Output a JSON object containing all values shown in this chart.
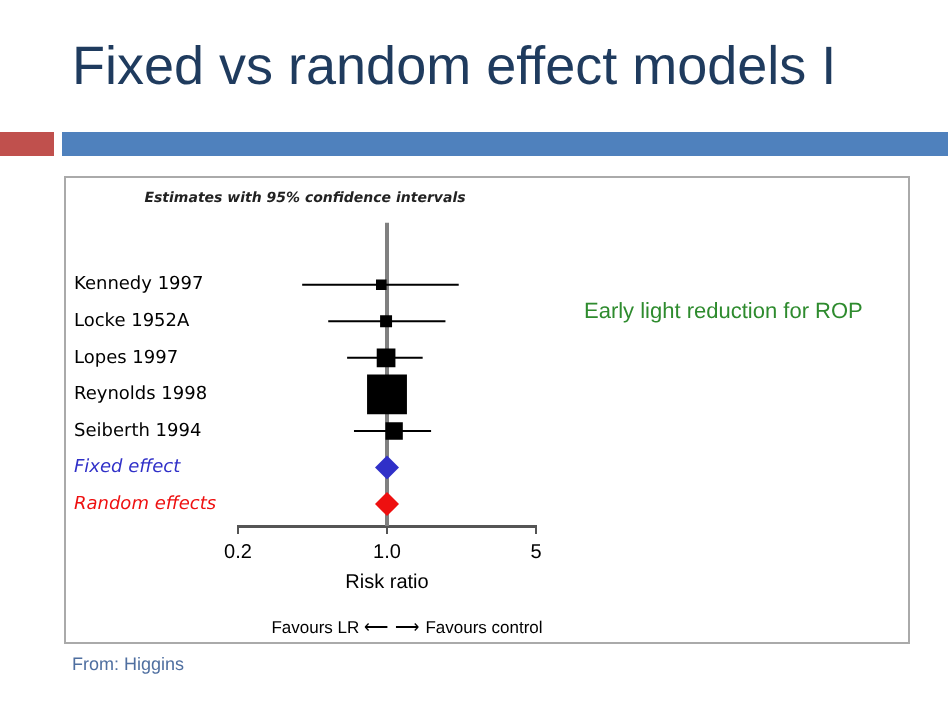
{
  "chart_data": {
    "type": "scatter",
    "orientation": "horizontal",
    "title": "Fixed vs random effect models I",
    "subtitle": "Estimates with 95% confidence intervals",
    "xlabel": "Risk ratio",
    "categories": [
      "Kennedy 1997",
      "Locke 1952A",
      "Lopes 1997",
      "Reynolds 1998",
      "Seiberth 1994",
      "Fixed effect",
      "Random effects"
    ],
    "log": "x",
    "xlim": [
      0.2,
      5
    ],
    "xticks": [
      0.2,
      {
        "value": 1,
        "label": "1.0"
      },
      5
    ],
    "grid": false,
    "legend": false,
    "ref_lines": [
      {
        "axis": "x",
        "value": 1,
        "color": "#808080"
      }
    ],
    "annotations": [
      "Early light reduction for ROP",
      "Favours LR ⟵ ⟶ Favours control",
      "From: Higgins"
    ],
    "series": [
      {
        "type": "bubble",
        "marker": "square",
        "color": "#000000",
        "values": [
          0.94,
          0.99,
          0.99,
          1.0,
          1.08,
          null,
          null
        ],
        "sizes": [
          0.07,
          0.09,
          0.22,
          1,
          0.19,
          null,
          null
        ],
        "errors": [
          [
            0.4,
            2.17
          ],
          [
            0.53,
            1.88
          ],
          [
            0.65,
            1.47
          ],
          null,
          [
            0.7,
            1.61
          ],
          null,
          null
        ]
      },
      {
        "type": "scatter",
        "marker": "diamond",
        "colors": [
          null,
          null,
          null,
          null,
          null,
          "#3030c8",
          "#ee1010"
        ],
        "values": [
          null,
          null,
          null,
          null,
          null,
          1.0,
          1.0
        ]
      }
    ]
  }
}
